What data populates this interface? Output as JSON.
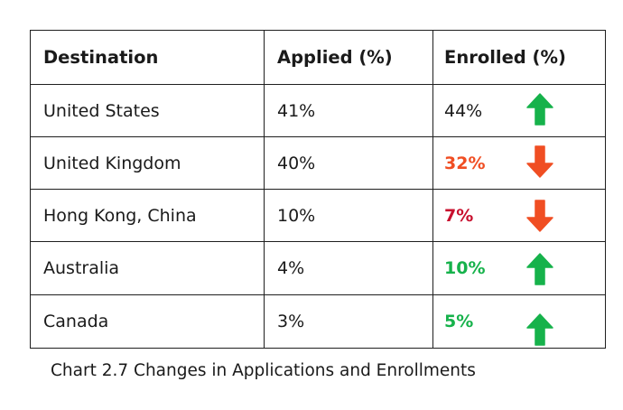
{
  "table": {
    "headers": [
      "Destination",
      "Applied (%)",
      "Enrolled (%)"
    ],
    "rows": [
      {
        "destination": "United States",
        "applied": "41%",
        "enrolled": "44%",
        "enrolled_color": "#1a1a1a",
        "enrolled_bold": false,
        "trend": "up",
        "arrow_color": "#16b24b"
      },
      {
        "destination": "United Kingdom",
        "applied": "40%",
        "enrolled": "32%",
        "enrolled_color": "#f04e23",
        "enrolled_bold": true,
        "trend": "down",
        "arrow_color": "#f04e23"
      },
      {
        "destination": "Hong Kong, China",
        "applied": "10%",
        "enrolled": "7%",
        "enrolled_color": "#c8102e",
        "enrolled_bold": true,
        "trend": "down",
        "arrow_color": "#f04e23"
      },
      {
        "destination": "Australia",
        "applied": "4%",
        "enrolled": "10%",
        "enrolled_color": "#16b24b",
        "enrolled_bold": true,
        "trend": "up",
        "arrow_color": "#16b24b"
      },
      {
        "destination": "Canada",
        "applied": "3%",
        "enrolled": "5%",
        "enrolled_color": "#16b24b",
        "enrolled_bold": true,
        "trend": "up",
        "arrow_color": "#16b24b"
      }
    ]
  },
  "caption": "Chart 2.7  Changes in Applications and Enrollments",
  "colors": {
    "border": "#1f1f1f",
    "up": "#16b24b",
    "down": "#f04e23"
  }
}
